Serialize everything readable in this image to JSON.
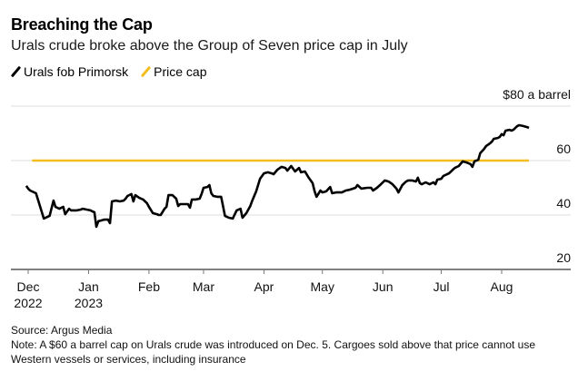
{
  "header": {
    "title": "Breaching the Cap",
    "subtitle": "Urals crude broke above the Group of Seven price cap in July"
  },
  "legend": [
    {
      "label": "Urals fob Primorsk",
      "color": "#000000"
    },
    {
      "label": "Price cap",
      "color": "#f2bd1d"
    }
  ],
  "footer": {
    "source": "Source: Argus Media",
    "note": "Note: A $60 a barrel cap on Urals crude was introduced on Dec. 5. Cargoes sold above that price cannot use Western vessels or services, including insurance"
  },
  "chart_data": {
    "type": "line",
    "title": "Breaching the Cap",
    "subtitle": "Urals crude broke above the Group of Seven price cap in July",
    "xlabel": "",
    "ylabel": "$ a barrel",
    "y_unit_label": "$80 a barrel",
    "ylim": [
      15,
      80
    ],
    "yticks": [
      20,
      40,
      60,
      80
    ],
    "ytick_labels": [
      "20",
      "40",
      "60",
      "$80 a barrel"
    ],
    "grid": true,
    "legend_position": "top-left",
    "xlim": [
      "2022-11-24",
      "2023-09-08"
    ],
    "xticks": [
      {
        "date": "2022-12-01",
        "label": "Dec",
        "sublabel": "2022"
      },
      {
        "date": "2023-01-01",
        "label": "Jan",
        "sublabel": "2023"
      },
      {
        "date": "2023-02-01",
        "label": "Feb",
        "sublabel": ""
      },
      {
        "date": "2023-03-01",
        "label": "Mar",
        "sublabel": ""
      },
      {
        "date": "2023-04-01",
        "label": "Apr",
        "sublabel": ""
      },
      {
        "date": "2023-05-01",
        "label": "May",
        "sublabel": ""
      },
      {
        "date": "2023-06-01",
        "label": "Jun",
        "sublabel": ""
      },
      {
        "date": "2023-07-01",
        "label": "Jul",
        "sublabel": ""
      },
      {
        "date": "2023-08-01",
        "label": "Aug",
        "sublabel": ""
      }
    ],
    "series": [
      {
        "name": "Urals fob Primorsk",
        "color": "#000000",
        "points": [
          [
            "2022-11-30",
            50.7
          ],
          [
            "2022-12-01",
            49.7
          ],
          [
            "2022-12-02",
            49.0
          ],
          [
            "2022-12-05",
            48.0
          ],
          [
            "2022-12-09",
            38.7
          ],
          [
            "2022-12-12",
            39.7
          ],
          [
            "2022-12-14",
            45.3
          ],
          [
            "2022-12-15",
            43.0
          ],
          [
            "2022-12-17",
            42.3
          ],
          [
            "2022-12-19",
            43.0
          ],
          [
            "2022-12-20",
            40.3
          ],
          [
            "2022-12-22",
            42.3
          ],
          [
            "2022-12-23",
            41.7
          ],
          [
            "2022-12-26",
            41.7
          ],
          [
            "2022-12-28",
            42.0
          ],
          [
            "2022-12-29",
            42.3
          ],
          [
            "2023-01-02",
            41.7
          ],
          [
            "2023-01-03",
            41.3
          ],
          [
            "2023-01-04",
            41.0
          ],
          [
            "2023-01-05",
            35.7
          ],
          [
            "2023-01-06",
            37.7
          ],
          [
            "2023-01-09",
            38.3
          ],
          [
            "2023-01-11",
            38.3
          ],
          [
            "2023-01-12",
            37.0
          ],
          [
            "2023-01-13",
            45.0
          ],
          [
            "2023-01-15",
            45.3
          ],
          [
            "2023-01-17",
            45.0
          ],
          [
            "2023-01-19",
            45.3
          ],
          [
            "2023-01-20",
            46.0
          ],
          [
            "2023-01-21",
            47.0
          ],
          [
            "2023-01-23",
            47.7
          ],
          [
            "2023-01-24",
            45.0
          ],
          [
            "2023-01-25",
            47.3
          ],
          [
            "2023-01-27",
            46.3
          ],
          [
            "2023-01-29",
            45.7
          ],
          [
            "2023-01-31",
            44.3
          ],
          [
            "2023-02-01",
            43.0
          ],
          [
            "2023-02-03",
            40.7
          ],
          [
            "2023-02-05",
            40.3
          ],
          [
            "2023-02-06",
            40.0
          ],
          [
            "2023-02-07",
            40.0
          ],
          [
            "2023-02-09",
            42.3
          ],
          [
            "2023-02-10",
            43.0
          ],
          [
            "2023-02-11",
            47.3
          ],
          [
            "2023-02-13",
            47.3
          ],
          [
            "2023-02-15",
            46.0
          ],
          [
            "2023-02-16",
            43.3
          ],
          [
            "2023-02-17",
            44.0
          ],
          [
            "2023-02-20",
            44.0
          ],
          [
            "2023-02-21",
            44.0
          ],
          [
            "2023-02-22",
            42.7
          ],
          [
            "2023-02-23",
            45.7
          ],
          [
            "2023-02-25",
            45.7
          ],
          [
            "2023-02-27",
            46.0
          ],
          [
            "2023-02-28",
            47.7
          ],
          [
            "2023-03-01",
            50.0
          ],
          [
            "2023-03-03",
            50.3
          ],
          [
            "2023-03-04",
            51.0
          ],
          [
            "2023-03-05",
            48.0
          ],
          [
            "2023-03-06",
            47.0
          ],
          [
            "2023-03-08",
            46.7
          ],
          [
            "2023-03-10",
            46.7
          ],
          [
            "2023-03-11",
            43.3
          ],
          [
            "2023-03-12",
            39.7
          ],
          [
            "2023-03-14",
            39.0
          ],
          [
            "2023-03-16",
            38.7
          ],
          [
            "2023-03-18",
            41.7
          ],
          [
            "2023-03-20",
            42.3
          ],
          [
            "2023-03-21",
            39.0
          ],
          [
            "2023-03-23",
            40.7
          ],
          [
            "2023-03-25",
            43.3
          ],
          [
            "2023-03-26",
            45.3
          ],
          [
            "2023-03-28",
            48.7
          ],
          [
            "2023-03-30",
            53.3
          ],
          [
            "2023-04-01",
            55.3
          ],
          [
            "2023-04-03",
            55.7
          ],
          [
            "2023-04-05",
            55.3
          ],
          [
            "2023-04-06",
            55.0
          ],
          [
            "2023-04-08",
            56.7
          ],
          [
            "2023-04-10",
            57.7
          ],
          [
            "2023-04-12",
            57.3
          ],
          [
            "2023-04-13",
            56.3
          ],
          [
            "2023-04-15",
            58.0
          ],
          [
            "2023-04-17",
            56.0
          ],
          [
            "2023-04-19",
            57.3
          ],
          [
            "2023-04-20",
            55.7
          ],
          [
            "2023-04-22",
            56.0
          ],
          [
            "2023-04-24",
            53.7
          ],
          [
            "2023-04-26",
            51.7
          ],
          [
            "2023-04-27",
            48.7
          ],
          [
            "2023-04-28",
            46.7
          ],
          [
            "2023-04-30",
            49.0
          ],
          [
            "2023-05-01",
            48.3
          ],
          [
            "2023-05-03",
            48.7
          ],
          [
            "2023-05-05",
            50.3
          ],
          [
            "2023-05-06",
            48.0
          ],
          [
            "2023-05-08",
            48.3
          ],
          [
            "2023-05-11",
            48.3
          ],
          [
            "2023-05-13",
            49.0
          ],
          [
            "2023-05-15",
            49.3
          ],
          [
            "2023-05-18",
            50.0
          ],
          [
            "2023-05-19",
            51.0
          ],
          [
            "2023-05-21",
            49.7
          ],
          [
            "2023-05-24",
            50.0
          ],
          [
            "2023-05-26",
            50.0
          ],
          [
            "2023-05-27",
            49.0
          ],
          [
            "2023-05-29",
            50.0
          ],
          [
            "2023-05-31",
            51.3
          ],
          [
            "2023-06-02",
            52.7
          ],
          [
            "2023-06-04",
            52.3
          ],
          [
            "2023-06-06",
            51.3
          ],
          [
            "2023-06-08",
            49.7
          ],
          [
            "2023-06-09",
            48.3
          ],
          [
            "2023-06-11",
            51.0
          ],
          [
            "2023-06-13",
            52.3
          ],
          [
            "2023-06-14",
            52.7
          ],
          [
            "2023-06-16",
            52.7
          ],
          [
            "2023-06-18",
            52.3
          ],
          [
            "2023-06-19",
            53.7
          ],
          [
            "2023-06-20",
            51.7
          ],
          [
            "2023-06-21",
            51.3
          ],
          [
            "2023-06-23",
            52.0
          ],
          [
            "2023-06-25",
            51.3
          ],
          [
            "2023-06-27",
            52.0
          ],
          [
            "2023-06-28",
            51.3
          ],
          [
            "2023-06-29",
            53.0
          ],
          [
            "2023-07-01",
            53.3
          ],
          [
            "2023-07-02",
            54.3
          ],
          [
            "2023-07-04",
            55.0
          ],
          [
            "2023-07-05",
            55.3
          ],
          [
            "2023-07-06",
            56.0
          ],
          [
            "2023-07-07",
            56.7
          ],
          [
            "2023-07-08",
            57.3
          ],
          [
            "2023-07-10",
            58.0
          ],
          [
            "2023-07-12",
            59.7
          ],
          [
            "2023-07-14",
            59.3
          ],
          [
            "2023-07-16",
            58.7
          ],
          [
            "2023-07-17",
            57.7
          ],
          [
            "2023-07-18",
            59.7
          ],
          [
            "2023-07-20",
            60.3
          ],
          [
            "2023-07-21",
            62.7
          ],
          [
            "2023-07-23",
            64.3
          ],
          [
            "2023-07-24",
            65.3
          ],
          [
            "2023-07-26",
            66.3
          ],
          [
            "2023-07-27",
            67.0
          ],
          [
            "2023-07-28",
            68.0
          ],
          [
            "2023-07-30",
            68.3
          ],
          [
            "2023-07-31",
            68.7
          ],
          [
            "2023-08-01",
            69.7
          ],
          [
            "2023-08-02",
            69.3
          ],
          [
            "2023-08-03",
            71.0
          ],
          [
            "2023-08-05",
            71.3
          ],
          [
            "2023-08-06",
            71.0
          ],
          [
            "2023-08-07",
            71.3
          ],
          [
            "2023-08-09",
            72.7
          ],
          [
            "2023-08-10",
            73.0
          ],
          [
            "2023-08-12",
            72.7
          ],
          [
            "2023-08-14",
            72.3
          ],
          [
            "2023-08-15",
            72.0
          ]
        ]
      },
      {
        "name": "Price cap",
        "color": "#f2bd1d",
        "points": [
          [
            "2022-12-03",
            60
          ],
          [
            "2023-08-15",
            60
          ]
        ]
      }
    ]
  }
}
